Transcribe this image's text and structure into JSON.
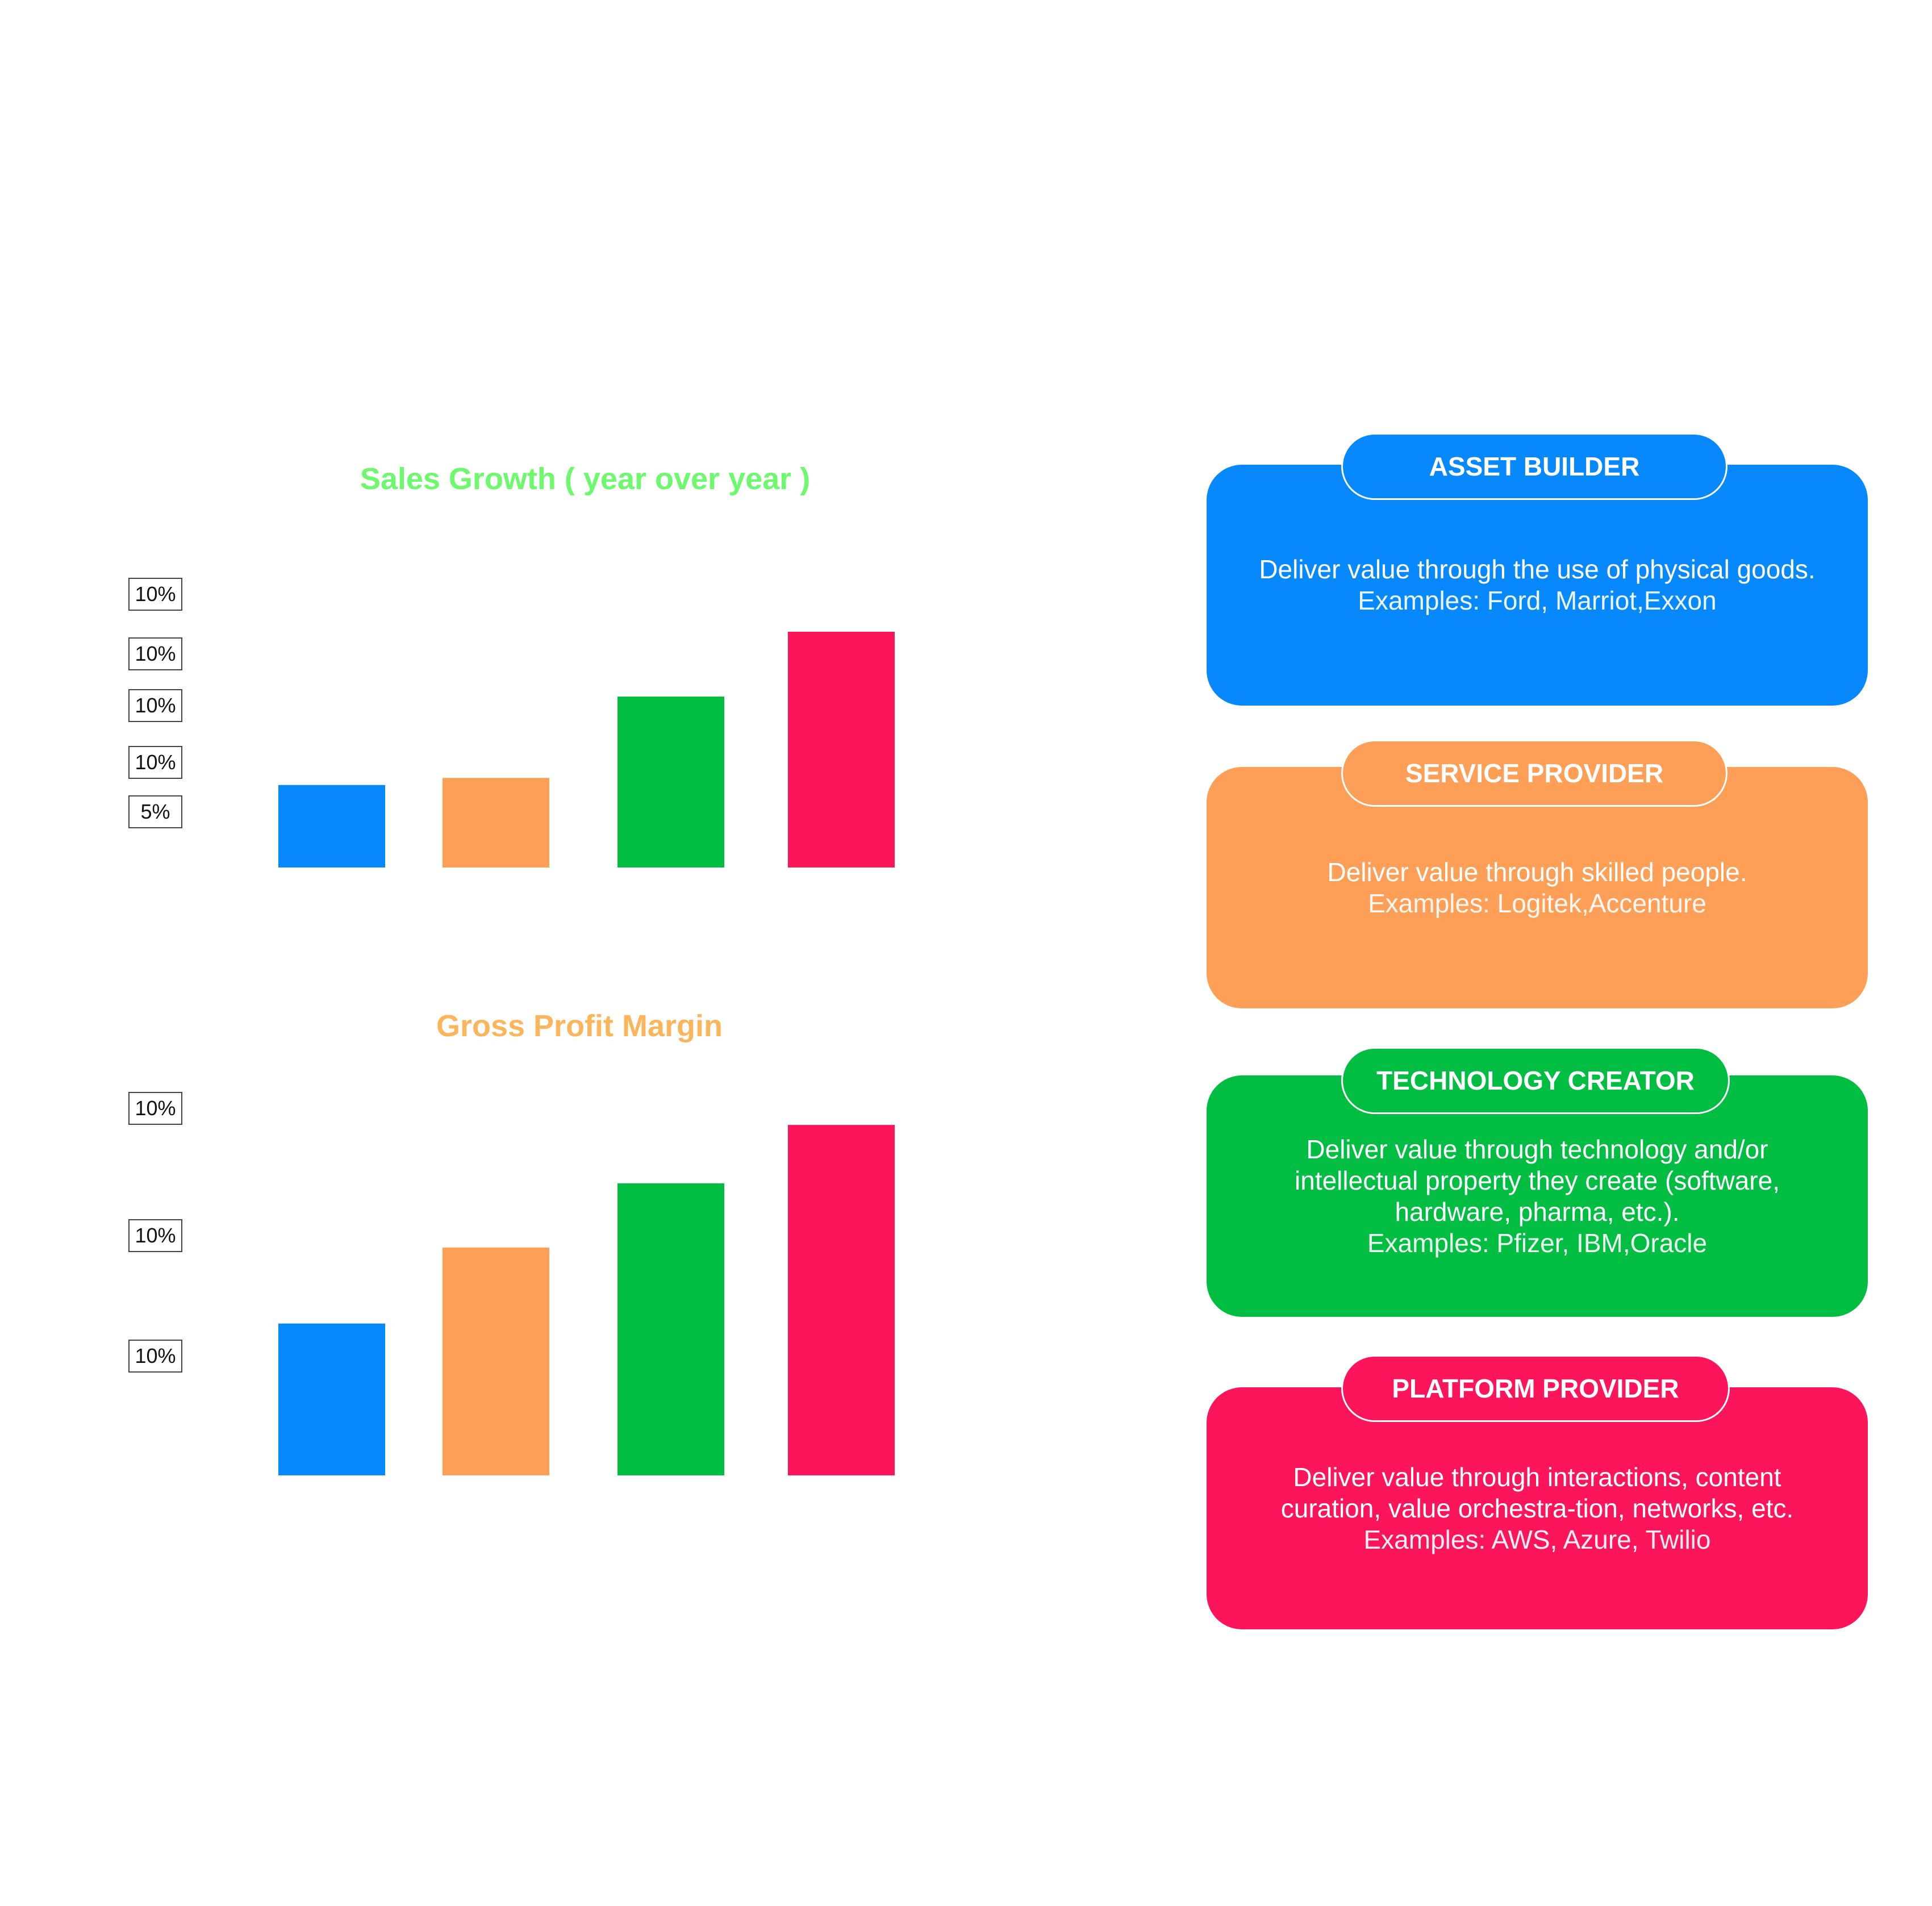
{
  "colors": {
    "blue": "#0788FC",
    "orange": "#FD9F57",
    "green": "#01BE43",
    "pink": "#FD155C",
    "sales_title": "#6CF96C",
    "gpm_title": "#FCB55B"
  },
  "chart_data": [
    {
      "type": "bar",
      "title": "Sales Growth ( year over year )",
      "tick_labels": [
        "10%",
        "10%",
        "10%",
        "10%",
        "5%"
      ],
      "categories": [
        "",
        "",
        "",
        ""
      ],
      "values": [
        7,
        7.6,
        14.5,
        20
      ],
      "bar_colors": [
        "#0788FC",
        "#FD9F57",
        "#01BE43",
        "#FD155C"
      ],
      "ylim": [
        0,
        24
      ],
      "grid": false
    },
    {
      "type": "bar",
      "title": "Gross Profit Margin",
      "tick_labels": [
        "10%",
        "10%",
        "10%"
      ],
      "categories": [
        "",
        "",
        "",
        ""
      ],
      "values": [
        13,
        19.5,
        25,
        30
      ],
      "bar_colors": [
        "#0788FC",
        "#FD9F57",
        "#01BE43",
        "#FD155C"
      ],
      "ylim": [
        0,
        32
      ],
      "grid": false
    }
  ],
  "cards": [
    {
      "title": "ASSET BUILDER",
      "description": "Deliver value through the use of physical goods.",
      "examples": "Examples: Ford, Marriot,Exxon",
      "color": "#0788FC"
    },
    {
      "title": "SERVICE PROVIDER",
      "description": "Deliver value through skilled people.",
      "examples": "Examples: Logitek,Accenture",
      "color": "#FD9F57"
    },
    {
      "title": "TECHNOLOGY CREATOR",
      "description": "Deliver value through technology and/or intellectual property they create (software, hardware, pharma, etc.).",
      "examples": "Examples: Pfizer, IBM,Oracle",
      "color": "#01BE43"
    },
    {
      "title": "PLATFORM PROVIDER",
      "description": "Deliver value through interactions, content curation, value orchestra-tion, networks, etc.",
      "examples": "Examples: AWS, Azure, Twilio",
      "color": "#FD155C"
    }
  ]
}
